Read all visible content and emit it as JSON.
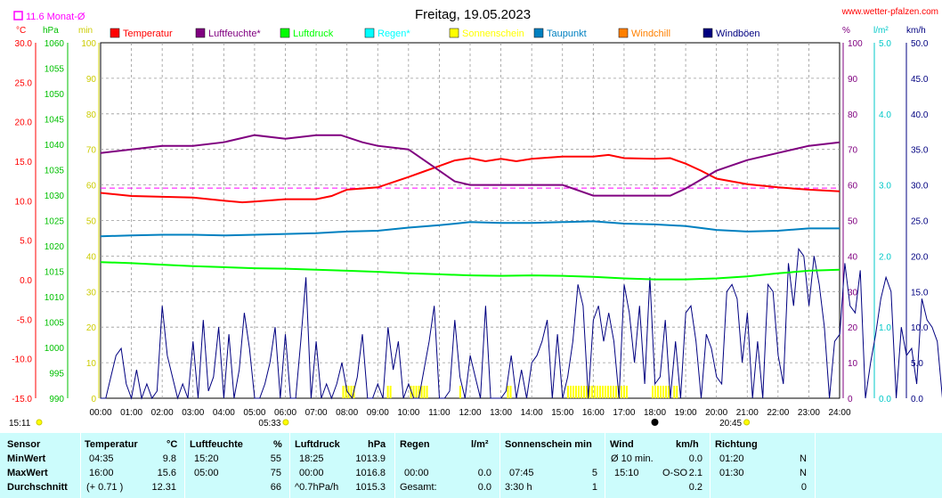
{
  "header": {
    "title": "Freitag, 19.05.2023",
    "site": "www.wetter-pfalzen.com",
    "monthly_avg": "11.6 Monat-Ø"
  },
  "axes": {
    "temp_unit": "°C",
    "pressure_unit": "hPa",
    "min_unit": "min",
    "pct_unit": "%",
    "rain_unit": "l/m²",
    "wind_unit": "km/h"
  },
  "legend": [
    {
      "name": "Temperatur",
      "color": "#ff0000"
    },
    {
      "name": "Luftfeuchte*",
      "color": "#800080"
    },
    {
      "name": "Luftdruck",
      "color": "#00ff00"
    },
    {
      "name": "Regen*",
      "color": "#00ffff"
    },
    {
      "name": "Sonnenschein",
      "color": "#ffff00"
    },
    {
      "name": "Taupunkt",
      "color": "#0080c0"
    },
    {
      "name": "Windchill",
      "color": "#ff8000"
    },
    {
      "name": "Windböen",
      "color": "#000080"
    }
  ],
  "sun_events": {
    "sunrise": "05:33",
    "sunset": "20:45"
  },
  "chart_data": {
    "type": "line",
    "title": "Freitag, 19.05.2023",
    "x_ticks": [
      "00:00",
      "01:00",
      "02:00",
      "03:00",
      "04:00",
      "05:00",
      "06:00",
      "07:00",
      "08:00",
      "09:00",
      "10:00",
      "11:00",
      "12:00",
      "13:00",
      "14:00",
      "15:00",
      "16:00",
      "17:00",
      "18:00",
      "19:00",
      "20:00",
      "21:00",
      "22:00",
      "23:00",
      "24:00"
    ],
    "axes": {
      "temperature": {
        "unit": "°C",
        "range": [
          -15,
          30
        ],
        "ticks": [
          "30.0",
          "25.0",
          "20.0",
          "15.0",
          "10.0",
          "5.0",
          "0.0",
          "-5.0",
          "-10.0",
          "-15.0"
        ]
      },
      "pressure": {
        "unit": "hPa",
        "range": [
          990,
          1060
        ],
        "ticks": [
          "1060",
          "1055",
          "1050",
          "1045",
          "1040",
          "1035",
          "1030",
          "1025",
          "1020",
          "1015",
          "1010",
          "1005",
          "1000",
          "995",
          "990"
        ]
      },
      "minutes": {
        "unit": "min",
        "range": [
          0,
          100
        ],
        "ticks": [
          "100",
          "90",
          "80",
          "70",
          "60",
          "50",
          "40",
          "30",
          "20",
          "10",
          "0"
        ]
      },
      "humidity": {
        "unit": "%",
        "range": [
          0,
          100
        ],
        "ticks": [
          "100",
          "90",
          "80",
          "70",
          "60",
          "50",
          "40",
          "30",
          "20",
          "10",
          "0"
        ]
      },
      "rain": {
        "unit": "l/m²",
        "range": [
          0,
          5
        ],
        "ticks": [
          "5.0",
          "4.0",
          "3.0",
          "2.0",
          "1.0",
          "0.0"
        ]
      },
      "wind": {
        "unit": "km/h",
        "range": [
          0,
          50
        ],
        "ticks": [
          "50.0",
          "45.0",
          "40.0",
          "35.0",
          "30.0",
          "25.0",
          "20.0",
          "15.0",
          "10.0",
          "5.0",
          "0.0"
        ]
      }
    },
    "monthly_average_temperature": 11.6,
    "series": [
      {
        "name": "Temperatur",
        "axis": "temperature",
        "color": "#ff0000",
        "x": [
          0,
          1,
          2,
          3,
          4,
          4.6,
          5,
          6,
          7,
          7.5,
          8,
          9,
          10,
          10.5,
          11,
          11.5,
          12,
          12.5,
          13,
          13.5,
          14,
          15,
          16,
          16.5,
          17,
          18,
          18.5,
          19,
          19.5,
          20,
          21,
          22,
          23,
          24
        ],
        "y": [
          11.0,
          10.6,
          10.5,
          10.4,
          10.0,
          9.8,
          9.9,
          10.2,
          10.2,
          10.6,
          11.4,
          11.7,
          13.0,
          13.7,
          14.4,
          15.1,
          15.4,
          15.0,
          15.3,
          15.0,
          15.3,
          15.6,
          15.6,
          15.8,
          15.4,
          15.3,
          15.4,
          14.7,
          13.8,
          12.8,
          12.1,
          11.7,
          11.4,
          11.2
        ]
      },
      {
        "name": "Luftfeuchte*",
        "axis": "humidity",
        "color": "#800080",
        "x": [
          0,
          1,
          2,
          3,
          4,
          5,
          6,
          7,
          7.8,
          8.5,
          9,
          10,
          11,
          11.5,
          12,
          13,
          14,
          15,
          16,
          17,
          18,
          18.5,
          19,
          20,
          21,
          22,
          23,
          24
        ],
        "y": [
          69,
          70,
          71,
          71,
          72,
          74,
          73,
          74,
          74,
          72,
          71,
          70,
          64,
          61,
          60,
          60,
          60,
          60,
          57,
          57,
          57,
          57,
          59,
          64,
          67,
          69,
          71,
          72
        ]
      },
      {
        "name": "Luftdruck",
        "axis": "pressure",
        "color": "#00ff00",
        "x": [
          0,
          1,
          2,
          3,
          4,
          5,
          6,
          7,
          8,
          9,
          10,
          11,
          12,
          13,
          14,
          15,
          16,
          17,
          18,
          19,
          20,
          21,
          22,
          23,
          24
        ],
        "y": [
          1016.8,
          1016.6,
          1016.3,
          1016.0,
          1015.8,
          1015.6,
          1015.5,
          1015.3,
          1015.1,
          1014.9,
          1014.6,
          1014.4,
          1014.2,
          1014.1,
          1014.2,
          1014.1,
          1013.9,
          1013.6,
          1013.4,
          1013.4,
          1013.6,
          1014.0,
          1014.6,
          1015.1,
          1015.3
        ]
      },
      {
        "name": "Taupunkt",
        "axis": "temperature",
        "color": "#0080c0",
        "x": [
          0,
          1,
          2,
          3,
          4,
          5,
          6,
          7,
          8,
          9,
          10,
          11,
          12,
          13,
          14,
          15,
          16,
          17,
          18,
          19,
          20,
          21,
          22,
          23,
          24
        ],
        "y": [
          5.5,
          5.6,
          5.7,
          5.7,
          5.6,
          5.7,
          5.8,
          5.9,
          6.1,
          6.2,
          6.6,
          6.9,
          7.3,
          7.2,
          7.2,
          7.3,
          7.4,
          7.1,
          7.0,
          6.8,
          6.3,
          6.1,
          6.2,
          6.5,
          6.5
        ]
      }
    ],
    "sunshine_minutes_intervals": [
      [
        7.85,
        8.25
      ],
      [
        9.3,
        9.45
      ],
      [
        10.05,
        10.6
      ],
      [
        11.65,
        11.7
      ],
      [
        13.2,
        13.3
      ],
      [
        15.15,
        17.1
      ],
      [
        17.9,
        18.5
      ],
      [
        18.6,
        18.75
      ]
    ],
    "wind_gusts_kmh": {
      "x_step_hours": 0.1667,
      "values": [
        0,
        0,
        3,
        6,
        7,
        2,
        0,
        4,
        0,
        2,
        0,
        1,
        13,
        6,
        3,
        0,
        2,
        0,
        8,
        0,
        11,
        1,
        3,
        10,
        0,
        9,
        0,
        4,
        12,
        7,
        0,
        0,
        2,
        5,
        10,
        0,
        9,
        0,
        0,
        8,
        17,
        0,
        8,
        0,
        2,
        0,
        2,
        5,
        1,
        0,
        3,
        9,
        0,
        0,
        2,
        0,
        10,
        4,
        8,
        0,
        2,
        0,
        0,
        4,
        8,
        13,
        0,
        0,
        1,
        11,
        3,
        0,
        6,
        3,
        0,
        13,
        0,
        0,
        0,
        1,
        6,
        0,
        4,
        0,
        5,
        6,
        8,
        11,
        0,
        9,
        0,
        3,
        8,
        16,
        13,
        0,
        11,
        13,
        8,
        12,
        8,
        0,
        16,
        12,
        5,
        13,
        2,
        17,
        2,
        3,
        11,
        0,
        8,
        0,
        12,
        13,
        8,
        0,
        9,
        7,
        3,
        2,
        15,
        16,
        14,
        5,
        12,
        0,
        8,
        0,
        16,
        15,
        6,
        2,
        19,
        13,
        21,
        20,
        13,
        20,
        16,
        10,
        0,
        8,
        9,
        19,
        13,
        12,
        18,
        0,
        5,
        9,
        14,
        17,
        15,
        0,
        10,
        6,
        7,
        2,
        14,
        11,
        10,
        8,
        0,
        12,
        7,
        1,
        0,
        0,
        4,
        2,
        0,
        12,
        0,
        3,
        0,
        4,
        6,
        5,
        2,
        0,
        9,
        0,
        2,
        5,
        7,
        0,
        4,
        4,
        0,
        4,
        11,
        6,
        0,
        3,
        8,
        0,
        2,
        0,
        2,
        13,
        0,
        0,
        0,
        3,
        0,
        1,
        8,
        0,
        4,
        6,
        0,
        6,
        0,
        0,
        0,
        3,
        0,
        1,
        0,
        2,
        7,
        1,
        0,
        1,
        0,
        0,
        5,
        0,
        2,
        3,
        1,
        0,
        0,
        6,
        0,
        0,
        0,
        1,
        0,
        0,
        0,
        0,
        0,
        0,
        0,
        0,
        3,
        0,
        7,
        0,
        0,
        0
      ]
    }
  },
  "table": {
    "headers": [
      "Sensor",
      "Temperatur",
      "°C",
      "Luftfeuchte",
      "%",
      "Luftdruck",
      "hPa",
      "Regen",
      "l/m²",
      "Sonnenschein min",
      "Wind",
      "km/h",
      "Richtung"
    ],
    "rows": [
      {
        "label": "MinWert",
        "temp_time": "04:35",
        "temp_val": "9.8",
        "hum_time": "15:20",
        "hum_val": "55",
        "press_time": "18:25",
        "press_val": "1013.9",
        "rain_time": "",
        "rain_val": "",
        "sun_time": "",
        "sun_val": "",
        "wind_time": "Ø 10 min.",
        "wind_dir": "",
        "wind_val": "0.0",
        "richt_time": "01:20",
        "richt_val": "N"
      },
      {
        "label": "MaxWert",
        "temp_time": "16:00",
        "temp_val": "15.6",
        "hum_time": "05:00",
        "hum_val": "75",
        "press_time": "00:00",
        "press_val": "1016.8",
        "rain_time": "00:00",
        "rain_val": "0.0",
        "sun_time": "07:45",
        "sun_val": "5",
        "wind_time": "15:10",
        "wind_dir": "O-SO",
        "wind_val": "2.1",
        "richt_time": "01:30",
        "richt_val": "N"
      },
      {
        "label": "Durchschnitt",
        "temp_time": "(+ 0.71 )",
        "temp_val": "12.31",
        "hum_time": "",
        "hum_val": "66",
        "press_time": "^0.7hPa/h",
        "press_val": "1015.3",
        "rain_time": "Gesamt:",
        "rain_val": "0.0",
        "sun_time": "3:30 h",
        "sun_val": "1",
        "wind_time": "",
        "wind_dir": "",
        "wind_val": "0.2",
        "richt_time": "",
        "richt_val": "0"
      }
    ]
  }
}
